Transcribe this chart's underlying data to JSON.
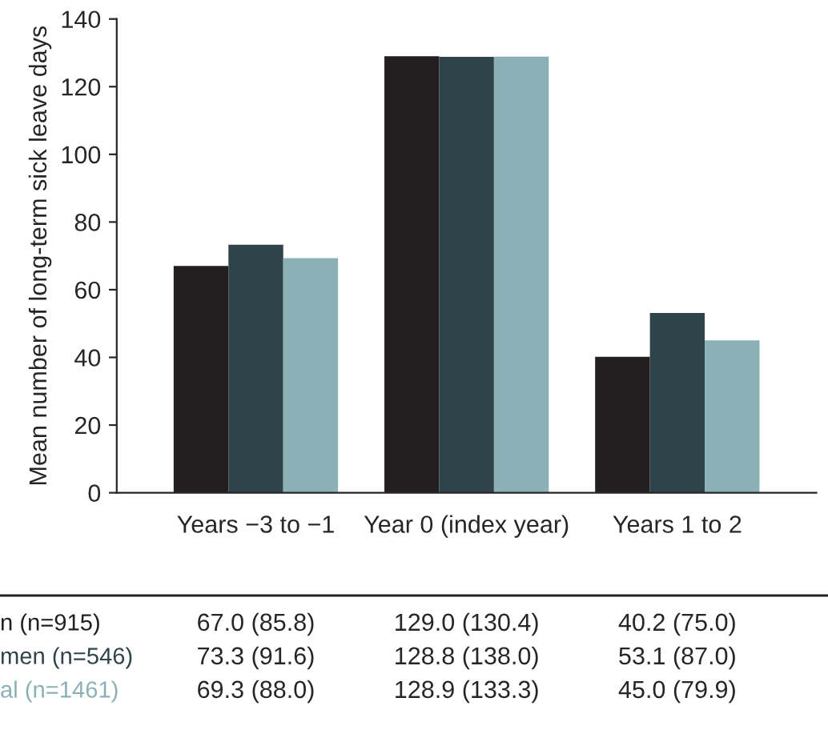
{
  "chart_data": {
    "type": "bar",
    "ylabel": "Mean number of long-term sick leave days",
    "categories": [
      "Years −3 to −1",
      "Year 0 (index year)",
      "Years 1 to 2"
    ],
    "series": [
      {
        "name": "n (n=915)",
        "color": "#231f20",
        "values": [
          67.0,
          129.0,
          40.2
        ],
        "value_labels": [
          "67.0 (85.8)",
          "129.0 (130.4)",
          "40.2 (75.0)"
        ]
      },
      {
        "name": "men (n=546)",
        "color": "#2f434a",
        "values": [
          73.3,
          128.8,
          53.1
        ],
        "value_labels": [
          "73.3 (91.6)",
          "128.8 (138.0)",
          "53.1 (87.0)"
        ]
      },
      {
        "name": "al (n=1461)",
        "color": "#8bb1b7",
        "values": [
          69.3,
          128.9,
          45.0
        ],
        "value_labels": [
          "69.3 (88.0)",
          "128.9 (133.3)",
          "45.0 (79.9)"
        ]
      }
    ],
    "ylim": [
      0,
      140
    ],
    "yticks": [
      0,
      20,
      40,
      60,
      80,
      100,
      120,
      140
    ],
    "grid": false,
    "legend": false
  }
}
